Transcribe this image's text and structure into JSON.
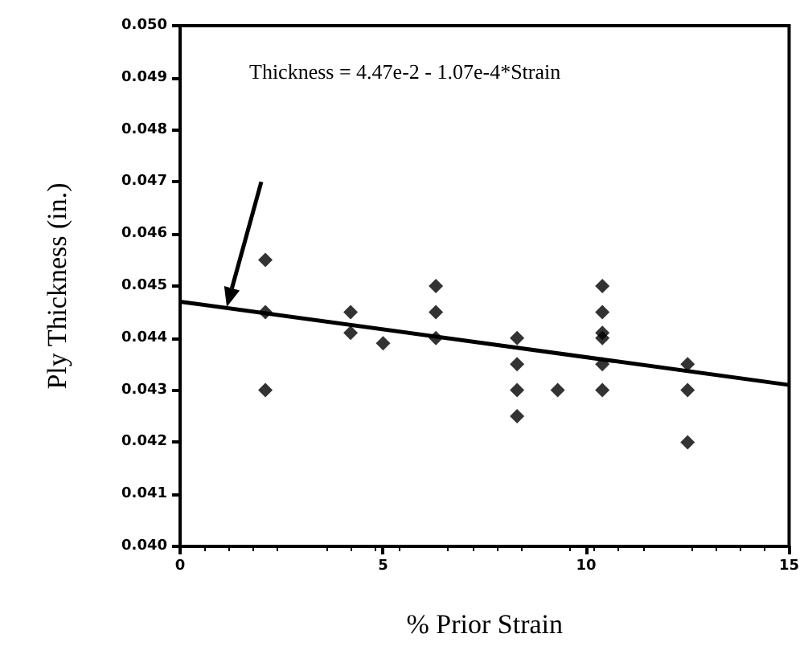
{
  "chart_data": {
    "type": "scatter",
    "xlabel": "% Prior Strain",
    "ylabel": "Ply Thickness (in.)",
    "annotations": [
      "Thickness = 4.47e-2 - 1.07e-4*Strain"
    ],
    "xlim": [
      0,
      15
    ],
    "xticks": [
      0,
      5,
      10,
      15
    ],
    "ylim": [
      0.04,
      0.05
    ],
    "yticks": [
      {
        "value": 0.04,
        "label": "0.040"
      },
      {
        "value": 0.041,
        "label": "0.041"
      },
      {
        "value": 0.042,
        "label": "0.042"
      },
      {
        "value": 0.043,
        "label": "0.043"
      },
      {
        "value": 0.044,
        "label": "0.044"
      },
      {
        "value": 0.045,
        "label": "0.045"
      },
      {
        "value": 0.046,
        "label": "0.046"
      },
      {
        "value": 0.047,
        "label": "0.047"
      },
      {
        "value": 0.048,
        "label": "0.048"
      },
      {
        "value": 0.049,
        "label": "0.049"
      },
      {
        "value": 0.05,
        "label": "0.050"
      }
    ],
    "grid": false,
    "marker": "diamond",
    "series": [
      {
        "color": "#000000",
        "x": [
          2.1,
          2.1,
          2.1,
          4.2,
          4.2,
          5,
          6.3,
          6.3,
          6.3,
          8.3,
          8.3,
          8.3,
          8.3,
          9.3,
          10.4,
          10.4,
          10.4,
          10.4,
          10.4,
          10.4,
          12.5,
          12.5,
          12.5
        ],
        "values": [
          0.0455,
          0.0445,
          0.043,
          0.0445,
          0.0441,
          0.0439,
          0.045,
          0.0445,
          0.044,
          0.044,
          0.0435,
          0.043,
          0.0425,
          0.043,
          0.045,
          0.0445,
          0.0441,
          0.044,
          0.0435,
          0.043,
          0.0435,
          0.043,
          0.042
        ]
      },
      {
        "type": "line",
        "color": "#000000",
        "x": [
          0,
          15
        ],
        "values": [
          0.0447,
          0.0431
        ],
        "marker": "none",
        "line_style": "solid"
      }
    ]
  }
}
